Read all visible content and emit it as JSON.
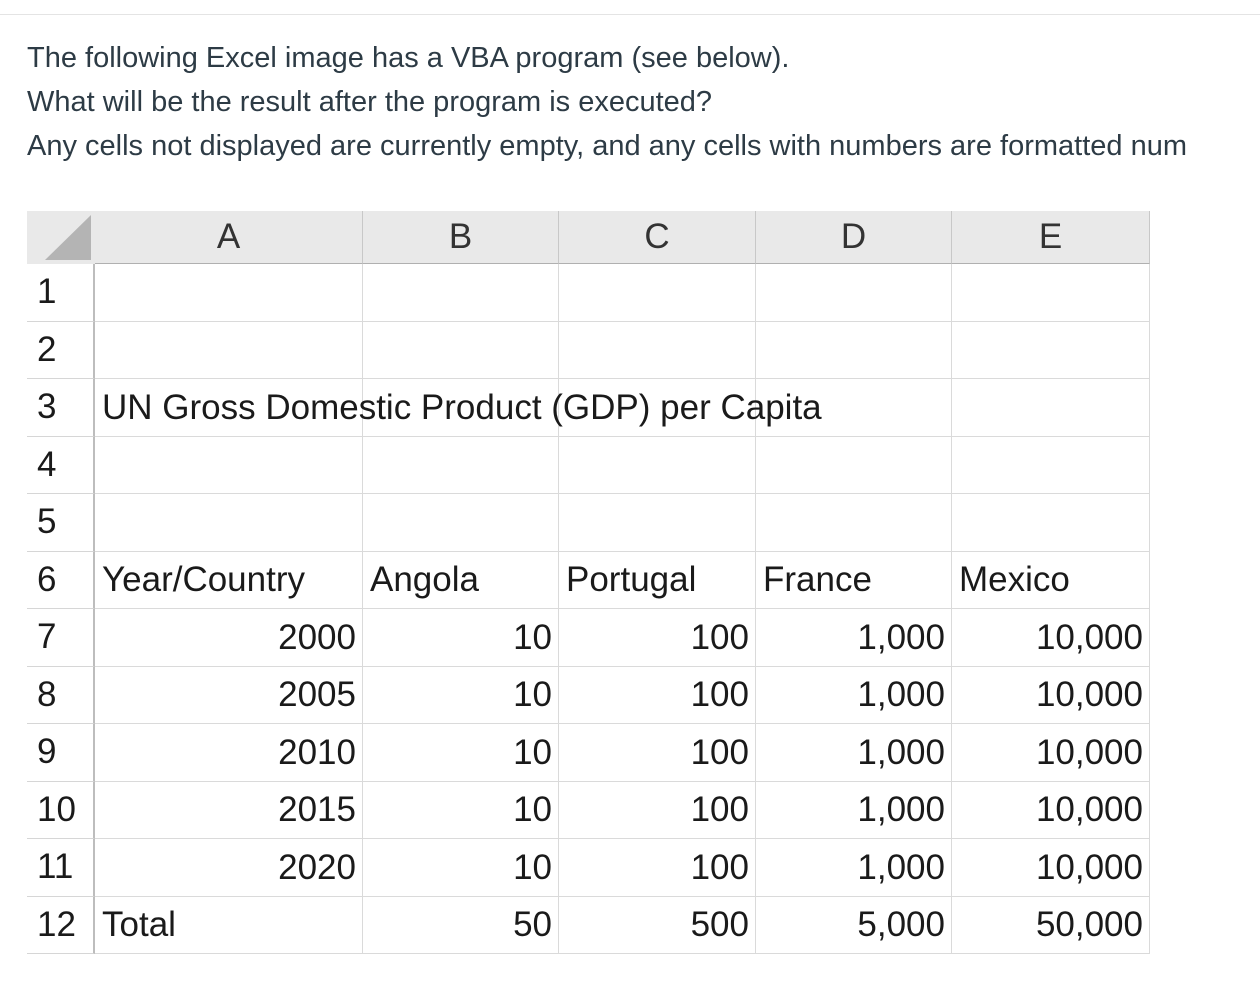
{
  "question": {
    "lines": [
      "The following Excel image has a VBA program (see below).",
      "What will be the result after the program is executed?",
      "Any cells not displayed are currently empty, and any cells with numbers are formatted num"
    ]
  },
  "sheet": {
    "columns": [
      "A",
      "B",
      "C",
      "D",
      "E"
    ],
    "row_numbers": [
      "1",
      "2",
      "3",
      "4",
      "5",
      "6",
      "7",
      "8",
      "9",
      "10",
      "11",
      "12"
    ],
    "rows": [
      [
        null,
        null,
        null,
        null,
        null
      ],
      [
        null,
        null,
        null,
        null,
        null
      ],
      [
        "UN Gross Domestic Product (GDP) per Capita",
        null,
        null,
        null,
        null
      ],
      [
        null,
        null,
        null,
        null,
        null
      ],
      [
        null,
        null,
        null,
        null,
        null
      ],
      [
        "Year/Country",
        "Angola",
        "Portugal",
        "France",
        "Mexico"
      ],
      [
        "2000",
        "10",
        "100",
        "1,000",
        "10,000"
      ],
      [
        "2005",
        "10",
        "100",
        "1,000",
        "10,000"
      ],
      [
        "2010",
        "10",
        "100",
        "1,000",
        "10,000"
      ],
      [
        "2015",
        "10",
        "100",
        "1,000",
        "10,000"
      ],
      [
        "2020",
        "10",
        "100",
        "1,000",
        "10,000"
      ],
      [
        "Total",
        "50",
        "500",
        "5,000",
        "50,000"
      ]
    ]
  }
}
